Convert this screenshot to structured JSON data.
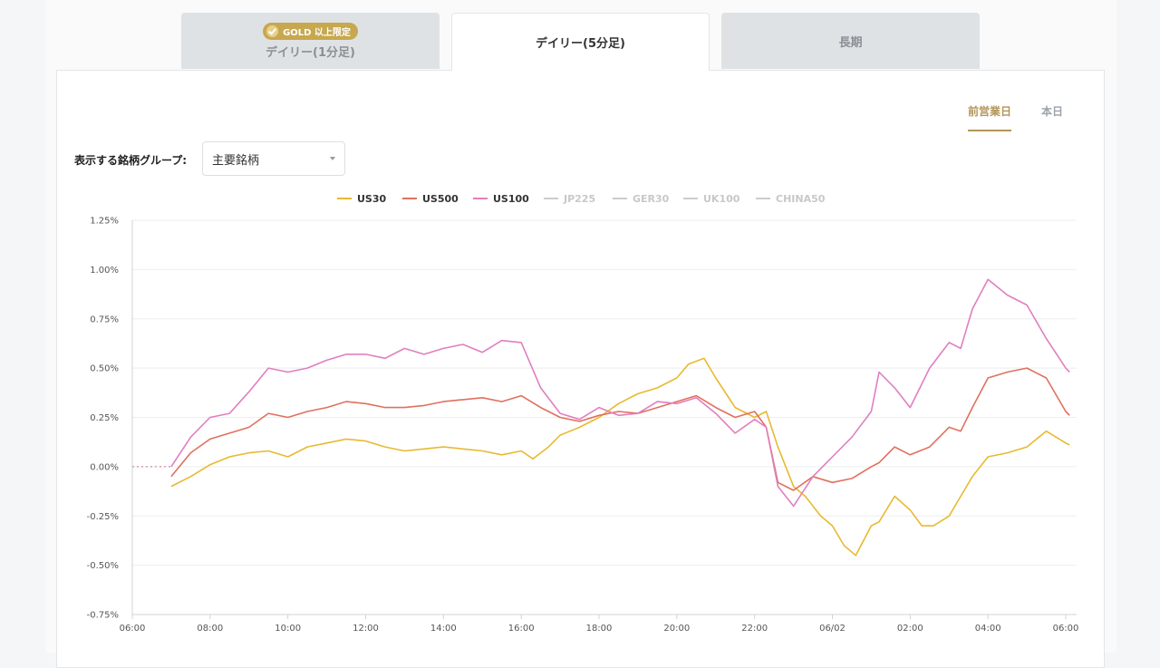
{
  "tabs": [
    {
      "label": "デイリー(1分足)",
      "badge": "GOLD 以上限定"
    },
    {
      "label": "デイリー(5分足)"
    },
    {
      "label": "長期"
    }
  ],
  "period": {
    "prev": "前営業日",
    "today": "本日"
  },
  "group": {
    "label": "表示する銘柄グループ:",
    "value": "主要銘柄"
  },
  "colors": {
    "US30": "#e8b931",
    "US500": "#e0705e",
    "US100": "#e07fbf",
    "inactive": "#cccccc",
    "gold": "#b3955a"
  },
  "chart_data": {
    "type": "line",
    "legend": [
      {
        "name": "US30",
        "active": true
      },
      {
        "name": "US500",
        "active": true
      },
      {
        "name": "US100",
        "active": true
      },
      {
        "name": "JP225",
        "active": false
      },
      {
        "name": "GER30",
        "active": false
      },
      {
        "name": "UK100",
        "active": false
      },
      {
        "name": "CHINA50",
        "active": false
      }
    ],
    "yticks": [
      "1.25%",
      "1.00%",
      "0.75%",
      "0.50%",
      "0.25%",
      "0.00%",
      "-0.25%",
      "-0.50%",
      "-0.75%"
    ],
    "ylim": [
      -0.75,
      1.25
    ],
    "xticks": [
      "06:00",
      "08:00",
      "10:00",
      "12:00",
      "14:00",
      "16:00",
      "18:00",
      "20:00",
      "22:00",
      "06/02",
      "02:00",
      "04:00",
      "06:00"
    ],
    "xlim_hours": [
      0,
      24.2
    ],
    "flat_segment": {
      "from": 0,
      "to": 1,
      "value": 0
    },
    "series": [
      {
        "name": "US30",
        "points": [
          [
            1,
            -0.1
          ],
          [
            1.5,
            -0.05
          ],
          [
            2,
            0.01
          ],
          [
            2.5,
            0.05
          ],
          [
            3,
            0.07
          ],
          [
            3.5,
            0.08
          ],
          [
            4,
            0.05
          ],
          [
            4.5,
            0.1
          ],
          [
            5,
            0.12
          ],
          [
            5.5,
            0.14
          ],
          [
            6,
            0.13
          ],
          [
            6.5,
            0.1
          ],
          [
            7,
            0.08
          ],
          [
            7.5,
            0.09
          ],
          [
            8,
            0.1
          ],
          [
            8.5,
            0.09
          ],
          [
            9,
            0.08
          ],
          [
            9.5,
            0.06
          ],
          [
            10,
            0.08
          ],
          [
            10.3,
            0.04
          ],
          [
            10.7,
            0.1
          ],
          [
            11,
            0.16
          ],
          [
            11.5,
            0.2
          ],
          [
            12,
            0.25
          ],
          [
            12.5,
            0.32
          ],
          [
            13,
            0.37
          ],
          [
            13.5,
            0.4
          ],
          [
            14,
            0.45
          ],
          [
            14.3,
            0.52
          ],
          [
            14.7,
            0.55
          ],
          [
            15,
            0.45
          ],
          [
            15.5,
            0.3
          ],
          [
            16,
            0.25
          ],
          [
            16.3,
            0.28
          ],
          [
            16.6,
            0.1
          ],
          [
            17,
            -0.1
          ],
          [
            17.3,
            -0.15
          ],
          [
            17.7,
            -0.25
          ],
          [
            18,
            -0.3
          ],
          [
            18.3,
            -0.4
          ],
          [
            18.6,
            -0.45
          ],
          [
            19,
            -0.3
          ],
          [
            19.2,
            -0.28
          ],
          [
            19.6,
            -0.15
          ],
          [
            20,
            -0.22
          ],
          [
            20.3,
            -0.3
          ],
          [
            20.6,
            -0.3
          ],
          [
            21,
            -0.25
          ],
          [
            21.3,
            -0.15
          ],
          [
            21.6,
            -0.05
          ],
          [
            22,
            0.05
          ],
          [
            22.5,
            0.07
          ],
          [
            23,
            0.1
          ],
          [
            23.5,
            0.18
          ],
          [
            24,
            0.12
          ],
          [
            24.1,
            0.11
          ]
        ]
      },
      {
        "name": "US500",
        "points": [
          [
            1,
            -0.05
          ],
          [
            1.5,
            0.07
          ],
          [
            2,
            0.14
          ],
          [
            2.5,
            0.17
          ],
          [
            3,
            0.2
          ],
          [
            3.5,
            0.27
          ],
          [
            4,
            0.25
          ],
          [
            4.5,
            0.28
          ],
          [
            5,
            0.3
          ],
          [
            5.5,
            0.33
          ],
          [
            6,
            0.32
          ],
          [
            6.5,
            0.3
          ],
          [
            7,
            0.3
          ],
          [
            7.5,
            0.31
          ],
          [
            8,
            0.33
          ],
          [
            8.5,
            0.34
          ],
          [
            9,
            0.35
          ],
          [
            9.5,
            0.33
          ],
          [
            10,
            0.36
          ],
          [
            10.5,
            0.3
          ],
          [
            11,
            0.25
          ],
          [
            11.5,
            0.23
          ],
          [
            12,
            0.26
          ],
          [
            12.5,
            0.28
          ],
          [
            13,
            0.27
          ],
          [
            13.5,
            0.3
          ],
          [
            14,
            0.33
          ],
          [
            14.5,
            0.36
          ],
          [
            15,
            0.3
          ],
          [
            15.5,
            0.25
          ],
          [
            16,
            0.28
          ],
          [
            16.3,
            0.2
          ],
          [
            16.6,
            -0.08
          ],
          [
            17,
            -0.12
          ],
          [
            17.5,
            -0.05
          ],
          [
            18,
            -0.08
          ],
          [
            18.5,
            -0.06
          ],
          [
            19,
            0.0
          ],
          [
            19.2,
            0.02
          ],
          [
            19.6,
            0.1
          ],
          [
            20,
            0.06
          ],
          [
            20.5,
            0.1
          ],
          [
            21,
            0.2
          ],
          [
            21.3,
            0.18
          ],
          [
            21.6,
            0.3
          ],
          [
            22,
            0.45
          ],
          [
            22.5,
            0.48
          ],
          [
            23,
            0.5
          ],
          [
            23.5,
            0.45
          ],
          [
            24,
            0.28
          ],
          [
            24.1,
            0.26
          ]
        ]
      },
      {
        "name": "US100",
        "points": [
          [
            1,
            0.0
          ],
          [
            1.5,
            0.15
          ],
          [
            2,
            0.25
          ],
          [
            2.5,
            0.27
          ],
          [
            3,
            0.38
          ],
          [
            3.5,
            0.5
          ],
          [
            4,
            0.48
          ],
          [
            4.5,
            0.5
          ],
          [
            5,
            0.54
          ],
          [
            5.5,
            0.57
          ],
          [
            6,
            0.57
          ],
          [
            6.5,
            0.55
          ],
          [
            7,
            0.6
          ],
          [
            7.5,
            0.57
          ],
          [
            8,
            0.6
          ],
          [
            8.5,
            0.62
          ],
          [
            9,
            0.58
          ],
          [
            9.5,
            0.64
          ],
          [
            10,
            0.63
          ],
          [
            10.5,
            0.4
          ],
          [
            11,
            0.27
          ],
          [
            11.5,
            0.24
          ],
          [
            12,
            0.3
          ],
          [
            12.5,
            0.26
          ],
          [
            13,
            0.27
          ],
          [
            13.5,
            0.33
          ],
          [
            14,
            0.32
          ],
          [
            14.5,
            0.35
          ],
          [
            15,
            0.27
          ],
          [
            15.5,
            0.17
          ],
          [
            16,
            0.24
          ],
          [
            16.3,
            0.2
          ],
          [
            16.6,
            -0.1
          ],
          [
            17,
            -0.2
          ],
          [
            17.5,
            -0.05
          ],
          [
            18,
            0.05
          ],
          [
            18.5,
            0.15
          ],
          [
            19,
            0.28
          ],
          [
            19.2,
            0.48
          ],
          [
            19.6,
            0.4
          ],
          [
            20,
            0.3
          ],
          [
            20.5,
            0.5
          ],
          [
            21,
            0.63
          ],
          [
            21.3,
            0.6
          ],
          [
            21.6,
            0.8
          ],
          [
            22,
            0.95
          ],
          [
            22.5,
            0.87
          ],
          [
            23,
            0.82
          ],
          [
            23.5,
            0.65
          ],
          [
            24,
            0.5
          ],
          [
            24.1,
            0.48
          ]
        ]
      }
    ]
  }
}
